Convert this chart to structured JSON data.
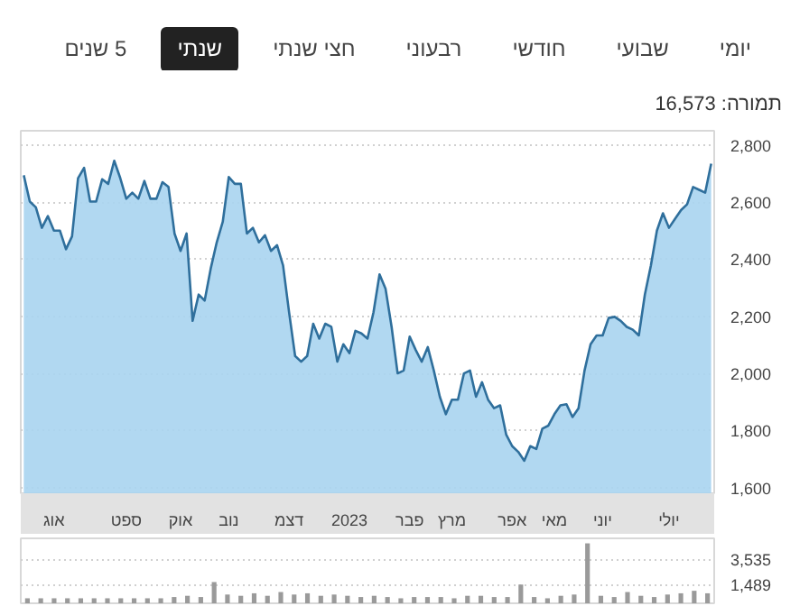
{
  "chart_data": [
    {
      "type": "area",
      "annotations": [
        "יומי",
        "שבועי",
        "חודשי",
        "רבעוני",
        "חצי שנתי",
        "שנתי",
        "5 שנים",
        "תמורה: 16,573"
      ],
      "categories": [
        null,
        null,
        null,
        null,
        null,
        "אוג",
        null,
        null,
        null,
        null,
        null,
        null,
        null,
        null,
        null,
        null,
        null,
        "ספט",
        null,
        null,
        null,
        null,
        null,
        null,
        null,
        null,
        "אוק",
        null,
        null,
        null,
        null,
        null,
        null,
        null,
        "נוב",
        null,
        null,
        null,
        null,
        null,
        null,
        null,
        null,
        null,
        "דצמ",
        null,
        null,
        null,
        null,
        null,
        null,
        null,
        null,
        null,
        "2023",
        null,
        null,
        null,
        null,
        null,
        null,
        null,
        null,
        null,
        "פבר",
        null,
        null,
        null,
        null,
        null,
        null,
        "מרץ",
        null,
        null,
        null,
        null,
        null,
        null,
        null,
        null,
        null,
        "אפר",
        null,
        null,
        null,
        null,
        null,
        null,
        "מאי",
        null,
        null,
        null,
        null,
        null,
        null,
        null,
        "יוני",
        null,
        null,
        null,
        null,
        null,
        null,
        null,
        null,
        null,
        null,
        "יולי",
        null,
        null,
        null,
        null,
        null,
        null,
        null
      ],
      "series": [
        {
          "color": "#2f6f9c",
          "values": [
            2694,
            2602,
            2582,
            2510,
            2551,
            2500,
            2500,
            2435,
            2480,
            2684,
            2720,
            2602,
            2602,
            2680,
            2664,
            2745,
            2684,
            2612,
            2633,
            2612,
            2674,
            2612,
            2612,
            2670,
            2653,
            2490,
            2429,
            2490,
            2184,
            2276,
            2255,
            2367,
            2459,
            2531,
            2688,
            2664,
            2664,
            2490,
            2510,
            2459,
            2484,
            2429,
            2449,
            2378,
            2214,
            2061,
            2041,
            2061,
            2174,
            2122,
            2174,
            2163,
            2041,
            2102,
            2071,
            2149,
            2140,
            2122,
            2214,
            2347,
            2296,
            2163,
            2000,
            2010,
            2129,
            2082,
            2041,
            2092,
            2010,
            1918,
            1857,
            1908,
            1908,
            2000,
            2010,
            1918,
            1969,
            1908,
            1878,
            1888,
            1786,
            1745,
            1725,
            1694,
            1745,
            1735,
            1806,
            1817,
            1857,
            1888,
            1892,
            1847,
            1878,
            2010,
            2102,
            2133,
            2133,
            2194,
            2198,
            2184,
            2163,
            2153,
            2133,
            2276,
            2378,
            2500,
            2561,
            2510,
            2541,
            2572,
            2592,
            2653,
            2643,
            2633,
            2735
          ]
        }
      ],
      "ylim": [
        1580,
        2850
      ],
      "yticks": [
        {
          "value": 1600,
          "label": "1,600"
        },
        {
          "value": 1800,
          "label": "1,800"
        },
        {
          "value": 2000,
          "label": "2,000"
        },
        {
          "value": 2200,
          "label": "2,200"
        },
        {
          "value": 2400,
          "label": "2,400"
        },
        {
          "value": 2600,
          "label": "2,600"
        },
        {
          "value": 2800,
          "label": "2,800"
        }
      ],
      "grid": "y"
    },
    {
      "type": "bar",
      "categories": [
        null,
        null,
        null,
        null,
        null,
        null,
        null,
        null,
        null,
        null,
        null,
        null,
        null,
        null,
        null,
        null,
        null,
        null,
        null,
        null,
        null,
        null,
        null,
        null,
        null,
        null,
        null,
        null,
        null,
        null,
        null,
        null,
        null,
        null,
        null,
        null,
        null,
        null,
        null,
        null,
        null,
        null,
        null,
        null,
        null,
        null,
        null,
        null,
        null,
        null,
        null,
        null
      ],
      "series": [
        {
          "color": "#9a9a9a",
          "values": [
            400,
            400,
            400,
            400,
            400,
            400,
            400,
            400,
            400,
            400,
            400,
            500,
            600,
            500,
            1700,
            700,
            600,
            800,
            600,
            900,
            700,
            800,
            600,
            700,
            600,
            500,
            600,
            500,
            400,
            500,
            500,
            500,
            400,
            600,
            600,
            500,
            500,
            1500,
            500,
            400,
            600,
            700,
            4800,
            600,
            500,
            900,
            600,
            500,
            700,
            800,
            1000,
            800
          ]
        }
      ],
      "ylim": [
        0,
        5200
      ],
      "yticks": [
        {
          "value": 1489,
          "label": "1,489"
        },
        {
          "value": 3535,
          "label": "3,535"
        }
      ],
      "tick_labels": "y",
      "grid": "y"
    }
  ]
}
